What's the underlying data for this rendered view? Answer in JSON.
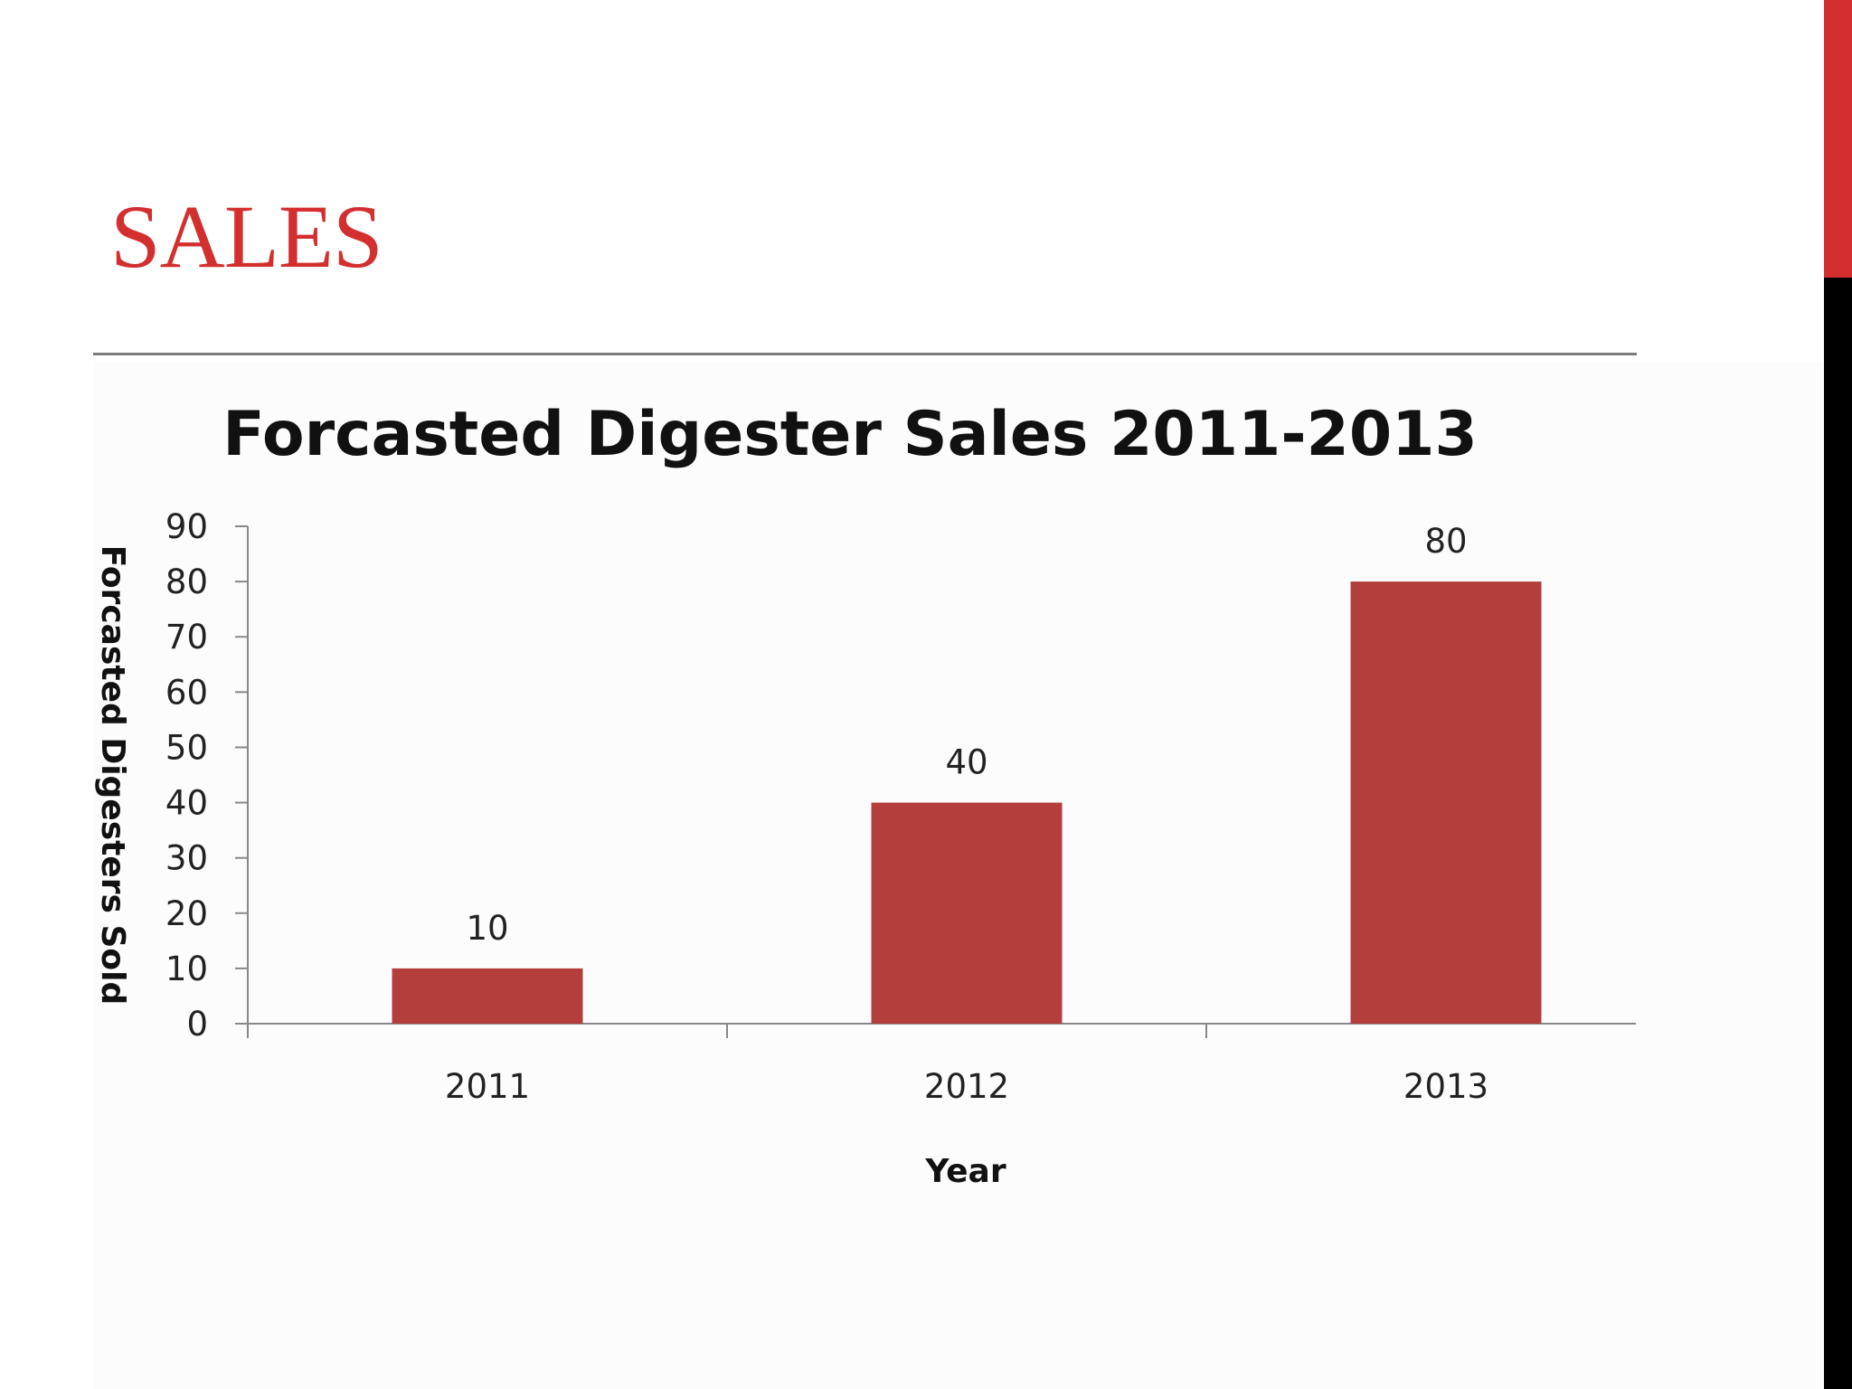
{
  "slide": {
    "title": "SALES",
    "accent_color": "#d32f2f",
    "bar_color": "#b33e3c"
  },
  "chart_data": {
    "type": "bar",
    "title": "Forcasted Digester Sales 2011-2013",
    "xlabel": "Year",
    "ylabel": "Forcasted Digesters Sold",
    "categories": [
      "2011",
      "2012",
      "2013"
    ],
    "values": [
      10,
      40,
      80
    ],
    "data_labels": [
      "10",
      "40",
      "80"
    ],
    "ylim": [
      0,
      90
    ],
    "y_ticks": [
      0,
      10,
      20,
      30,
      40,
      50,
      60,
      70,
      80,
      90
    ],
    "grid": false,
    "legend": "none"
  }
}
